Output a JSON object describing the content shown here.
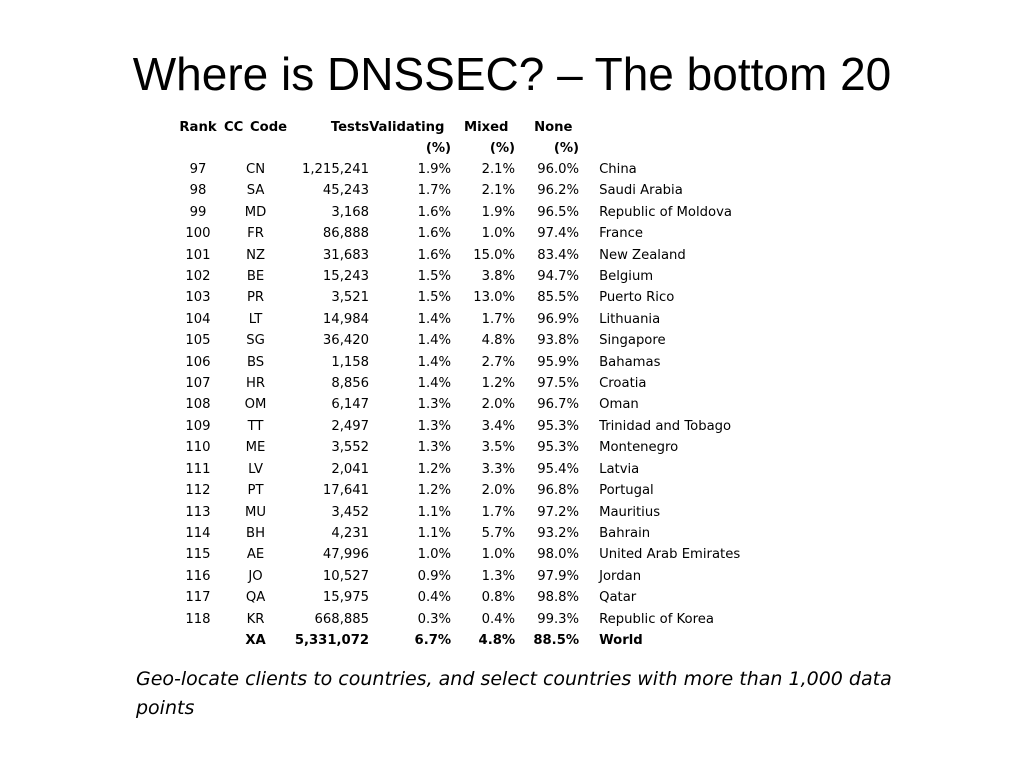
{
  "slide": {
    "title": "Where is DNSSEC? – The bottom 20",
    "note": "Geo-locate clients to countries, and select countries with more than 1,000 data points"
  },
  "table": {
    "headers": {
      "rank": "Rank",
      "cc": "CC Code",
      "tests": "Tests",
      "validating": "Validating ",
      "validating_unit": "(%)",
      "mixed": "Mixed ",
      "mixed_unit": "(%)",
      "none": "None ",
      "none_unit": "(%)"
    },
    "rows": [
      {
        "rank": "97",
        "cc": "CN",
        "tests": "1,215,241",
        "validating": "1.9%",
        "mixed": "2.1%",
        "none": "96.0%",
        "country": "China"
      },
      {
        "rank": "98",
        "cc": "SA",
        "tests": "45,243",
        "validating": "1.7%",
        "mixed": "2.1%",
        "none": "96.2%",
        "country": "Saudi Arabia"
      },
      {
        "rank": "99",
        "cc": "MD",
        "tests": "3,168",
        "validating": "1.6%",
        "mixed": "1.9%",
        "none": "96.5%",
        "country": "Republic of Moldova"
      },
      {
        "rank": "100",
        "cc": "FR",
        "tests": "86,888",
        "validating": "1.6%",
        "mixed": "1.0%",
        "none": "97.4%",
        "country": "France"
      },
      {
        "rank": "101",
        "cc": "NZ",
        "tests": "31,683",
        "validating": "1.6%",
        "mixed": "15.0%",
        "none": "83.4%",
        "country": "New Zealand"
      },
      {
        "rank": "102",
        "cc": "BE",
        "tests": "15,243",
        "validating": "1.5%",
        "mixed": "3.8%",
        "none": "94.7%",
        "country": "Belgium"
      },
      {
        "rank": "103",
        "cc": "PR",
        "tests": "3,521",
        "validating": "1.5%",
        "mixed": "13.0%",
        "none": "85.5%",
        "country": "Puerto Rico"
      },
      {
        "rank": "104",
        "cc": "LT",
        "tests": "14,984",
        "validating": "1.4%",
        "mixed": "1.7%",
        "none": "96.9%",
        "country": "Lithuania"
      },
      {
        "rank": "105",
        "cc": "SG",
        "tests": "36,420",
        "validating": "1.4%",
        "mixed": "4.8%",
        "none": "93.8%",
        "country": "Singapore"
      },
      {
        "rank": "106",
        "cc": "BS",
        "tests": "1,158",
        "validating": "1.4%",
        "mixed": "2.7%",
        "none": "95.9%",
        "country": "Bahamas"
      },
      {
        "rank": "107",
        "cc": "HR",
        "tests": "8,856",
        "validating": "1.4%",
        "mixed": "1.2%",
        "none": "97.5%",
        "country": "Croatia"
      },
      {
        "rank": "108",
        "cc": "OM",
        "tests": "6,147",
        "validating": "1.3%",
        "mixed": "2.0%",
        "none": "96.7%",
        "country": "Oman"
      },
      {
        "rank": "109",
        "cc": "TT",
        "tests": "2,497",
        "validating": "1.3%",
        "mixed": "3.4%",
        "none": "95.3%",
        "country": "Trinidad and Tobago"
      },
      {
        "rank": "110",
        "cc": "ME",
        "tests": "3,552",
        "validating": "1.3%",
        "mixed": "3.5%",
        "none": "95.3%",
        "country": "Montenegro"
      },
      {
        "rank": "111",
        "cc": "LV",
        "tests": "2,041",
        "validating": "1.2%",
        "mixed": "3.3%",
        "none": "95.4%",
        "country": "Latvia"
      },
      {
        "rank": "112",
        "cc": "PT",
        "tests": "17,641",
        "validating": "1.2%",
        "mixed": "2.0%",
        "none": "96.8%",
        "country": "Portugal"
      },
      {
        "rank": "113",
        "cc": "MU",
        "tests": "3,452",
        "validating": "1.1%",
        "mixed": "1.7%",
        "none": "97.2%",
        "country": "Mauritius"
      },
      {
        "rank": "114",
        "cc": "BH",
        "tests": "4,231",
        "validating": "1.1%",
        "mixed": "5.7%",
        "none": "93.2%",
        "country": "Bahrain"
      },
      {
        "rank": "115",
        "cc": "AE",
        "tests": "47,996",
        "validating": "1.0%",
        "mixed": "1.0%",
        "none": "98.0%",
        "country": "United Arab Emirates"
      },
      {
        "rank": "116",
        "cc": "JO",
        "tests": "10,527",
        "validating": "0.9%",
        "mixed": "1.3%",
        "none": "97.9%",
        "country": "Jordan"
      },
      {
        "rank": "117",
        "cc": "QA",
        "tests": "15,975",
        "validating": "0.4%",
        "mixed": "0.8%",
        "none": "98.8%",
        "country": "Qatar"
      },
      {
        "rank": "118",
        "cc": "KR",
        "tests": "668,885",
        "validating": "0.3%",
        "mixed": "0.4%",
        "none": "99.3%",
        "country": "Republic of Korea"
      }
    ],
    "total": {
      "rank": "",
      "cc": "XA",
      "tests": "5,331,072",
      "validating": "6.7%",
      "mixed": "4.8%",
      "none": "88.5%",
      "country": "World"
    }
  }
}
